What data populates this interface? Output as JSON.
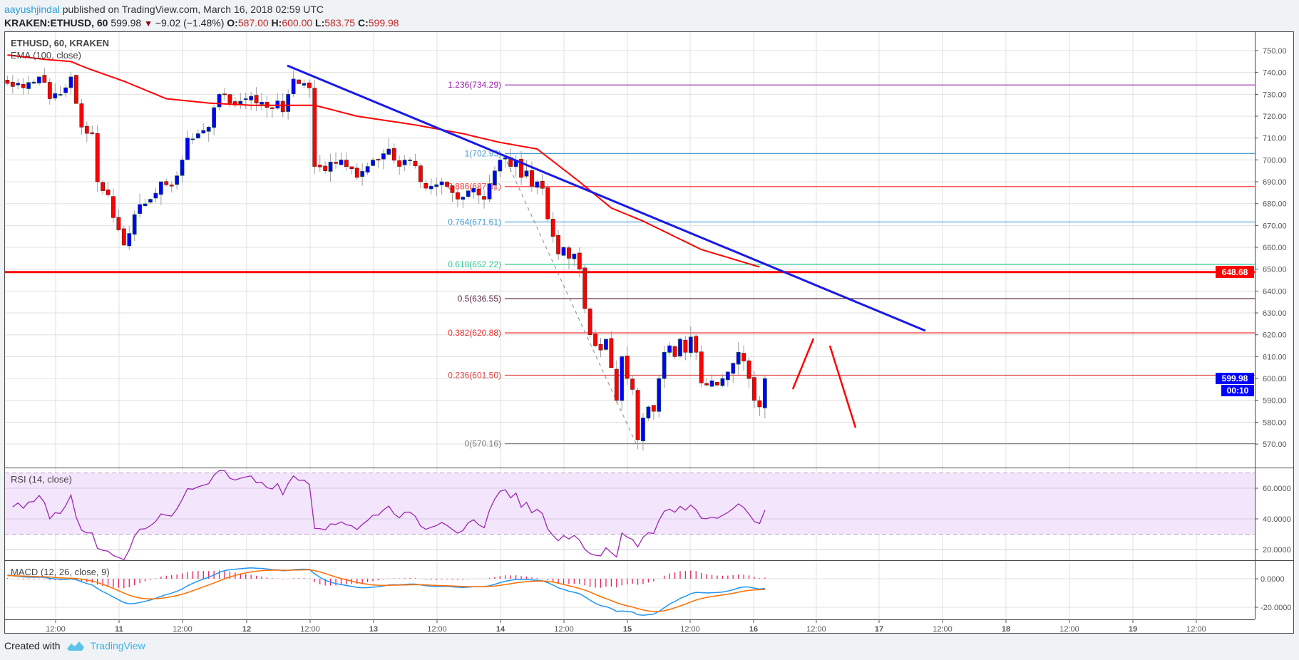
{
  "header": {
    "author": "aayushjindal",
    "published": "published on TradingView.com, March 16, 2018 02:59 UTC",
    "symbol": "KRAKEN:ETHUSD, 60",
    "last": "599.98",
    "change": "−9.02 (−1.48%)",
    "o_label": "O:",
    "o": "587.00",
    "h_label": "H:",
    "h": "600.00",
    "l_label": "L:",
    "l": "583.75",
    "c_label": "C:",
    "c": "599.98"
  },
  "legend": {
    "main": "ETHUSD, 60, KRAKEN",
    "ema": "EMA (100, close)",
    "rsi": "RSI (14, close)",
    "macd": "MACD (12, 26, close, 9)"
  },
  "price_axis": [
    "750.00",
    "740.00",
    "730.00",
    "720.00",
    "710.00",
    "700.00",
    "690.00",
    "680.00",
    "670.00",
    "660.00",
    "650.00",
    "640.00",
    "630.00",
    "620.00",
    "610.00",
    "600.00",
    "590.00",
    "580.00",
    "570.00"
  ],
  "rsi_axis": [
    "60.0000",
    "40.0000",
    "20.0000"
  ],
  "macd_axis": [
    "0.0000",
    "-20.0000"
  ],
  "time_axis": [
    "12:00",
    "11",
    "12:00",
    "12",
    "12:00",
    "13",
    "12:00",
    "14",
    "12:00",
    "15",
    "12:00",
    "16",
    "12:00",
    "17",
    "12:00",
    "18",
    "12:00",
    "19",
    "12:00"
  ],
  "badges": {
    "support": "648.68",
    "last": "599.98",
    "countdown": "00:10"
  },
  "footer": {
    "created": "Created with",
    "brand": "TradingView"
  },
  "colors": {
    "up": "#0000ff",
    "down": "#ff0000",
    "ema": "#ff0000",
    "trend": "#1a1ae6",
    "support": "#ff0000",
    "rsi": "#9c27b0",
    "macd": "#2196f3",
    "signal": "#ff6d00",
    "hist": "#e91e63"
  },
  "chart_data": {
    "type": "candlestick",
    "title": "ETHUSD, 60, KRAKEN",
    "interval": "60",
    "ylim": [
      565,
      755
    ],
    "support_level": 648.68,
    "close_keyframes": [
      [
        0,
        735
      ],
      [
        3,
        733
      ],
      [
        6,
        738
      ],
      [
        8,
        728
      ],
      [
        10,
        730
      ],
      [
        12,
        738
      ],
      [
        14,
        715
      ],
      [
        16,
        712
      ],
      [
        17,
        690
      ],
      [
        19,
        684
      ],
      [
        21,
        668
      ],
      [
        22,
        661
      ],
      [
        24,
        675
      ],
      [
        27,
        682
      ],
      [
        29,
        690
      ],
      [
        31,
        688
      ],
      [
        33,
        700
      ],
      [
        34,
        710
      ],
      [
        36,
        712
      ],
      [
        38,
        715
      ],
      [
        40,
        730
      ],
      [
        42,
        726
      ],
      [
        45,
        728
      ],
      [
        47,
        726
      ],
      [
        49,
        724
      ],
      [
        51,
        727
      ],
      [
        52,
        722
      ],
      [
        53,
        730
      ],
      [
        54,
        737
      ],
      [
        56,
        735
      ],
      [
        57,
        733
      ],
      [
        58,
        697
      ],
      [
        60,
        695
      ],
      [
        63,
        700
      ],
      [
        66,
        692
      ],
      [
        68,
        697
      ],
      [
        70,
        700
      ],
      [
        72,
        705
      ],
      [
        74,
        697
      ],
      [
        76,
        700
      ],
      [
        78,
        690
      ],
      [
        80,
        688
      ],
      [
        82,
        690
      ],
      [
        84,
        685
      ],
      [
        86,
        683
      ],
      [
        88,
        687
      ],
      [
        90,
        682
      ],
      [
        92,
        695
      ],
      [
        93,
        700
      ],
      [
        94,
        701
      ],
      [
        95,
        697
      ],
      [
        96,
        700
      ],
      [
        97,
        692
      ],
      [
        98,
        695
      ],
      [
        99,
        688
      ],
      [
        100,
        690
      ],
      [
        101,
        687
      ],
      [
        102,
        673
      ],
      [
        103,
        665
      ],
      [
        104,
        657
      ],
      [
        105,
        660
      ],
      [
        106,
        655
      ],
      [
        107,
        657
      ],
      [
        108,
        650
      ],
      [
        109,
        632
      ],
      [
        110,
        620
      ],
      [
        111,
        615
      ],
      [
        112,
        613
      ],
      [
        113,
        618
      ],
      [
        114,
        605
      ],
      [
        115,
        590
      ],
      [
        116,
        610
      ],
      [
        117,
        600
      ],
      [
        118,
        595
      ],
      [
        119,
        572
      ],
      [
        120,
        582
      ],
      [
        121,
        587
      ],
      [
        122,
        585
      ],
      [
        123,
        600
      ],
      [
        124,
        612
      ],
      [
        125,
        615
      ],
      [
        126,
        610
      ],
      [
        127,
        618
      ],
      [
        128,
        612
      ],
      [
        129,
        619
      ],
      [
        130,
        612
      ],
      [
        131,
        598
      ],
      [
        132,
        597
      ],
      [
        133,
        599
      ],
      [
        134,
        597
      ],
      [
        135,
        600
      ],
      [
        136,
        603
      ],
      [
        137,
        607
      ],
      [
        138,
        612
      ],
      [
        139,
        608
      ],
      [
        140,
        600
      ],
      [
        141,
        590
      ],
      [
        142,
        587
      ],
      [
        143,
        599.98
      ]
    ],
    "ema100_keyframes": [
      [
        0,
        748
      ],
      [
        7,
        746
      ],
      [
        12,
        745
      ],
      [
        15,
        742
      ],
      [
        22,
        736
      ],
      [
        30,
        728
      ],
      [
        38,
        726
      ],
      [
        46,
        725
      ],
      [
        58,
        725
      ],
      [
        66,
        720
      ],
      [
        77,
        716
      ],
      [
        86,
        712
      ],
      [
        93,
        708
      ],
      [
        100,
        705
      ],
      [
        108,
        690
      ],
      [
        114,
        678
      ],
      [
        120,
        672
      ],
      [
        131,
        659
      ],
      [
        142,
        651
      ]
    ],
    "fib_levels": [
      {
        "label": "1.236(734.29)",
        "price": 734.29,
        "color": "#9c27b0"
      },
      {
        "label": "1(702.93)",
        "price": 702.93,
        "color": "#4a9fd0"
      },
      {
        "label": "0.886(687.81)",
        "price": 687.81,
        "color": "#ff3b3b"
      },
      {
        "label": "0.764(671.61)",
        "price": 671.61,
        "color": "#3d9ad6"
      },
      {
        "label": "0.618(652.22)",
        "price": 652.22,
        "color": "#2ec497"
      },
      {
        "label": "0.5(636.55)",
        "price": 636.55,
        "color": "#5a2845"
      },
      {
        "label": "0.382(620.88)",
        "price": 620.88,
        "color": "#ee3333"
      },
      {
        "label": "0.236(601.50)",
        "price": 601.5,
        "color": "#e04545"
      },
      {
        "label": "0(570.16)",
        "price": 570.16,
        "color": "#777777"
      }
    ],
    "rsi_band": [
      30,
      70
    ],
    "rsi_ylim": [
      10,
      75
    ],
    "macd_ylim": [
      -28,
      12
    ]
  }
}
